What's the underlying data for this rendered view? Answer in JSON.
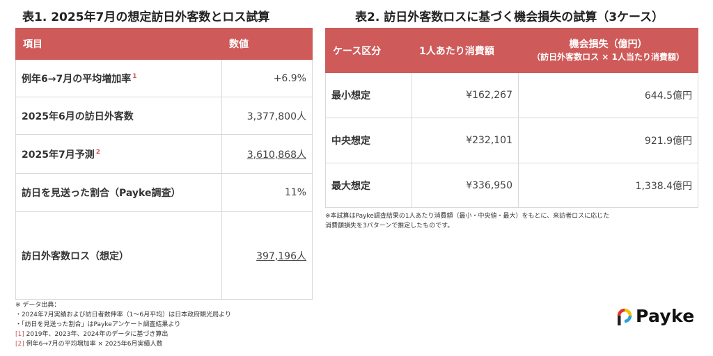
{
  "table1": {
    "title": "表1. 2025年7月の想定訪日外客数とロス試算",
    "headers": [
      "項目",
      "数値"
    ],
    "rows": [
      {
        "label": "例年6→7月の平均増加率",
        "ref": "1",
        "value": "+6.9%"
      },
      {
        "label": "2025年6月の訪日外客数",
        "ref": "",
        "value": "3,377,800人"
      },
      {
        "label": "2025年7月予測",
        "ref": "2",
        "value": "3,610,868人"
      },
      {
        "label": "訪日を見送った割合（Payke調査）",
        "ref": "",
        "value": "11%"
      },
      {
        "label": "訪日外客数ロス（想定）",
        "ref": "",
        "value": "397,196人"
      }
    ]
  },
  "table2": {
    "title": "表2. 訪日外客数ロスに基づく機会損失の試算（3ケース）",
    "headers": [
      "ケース区分",
      "1人あたり消費額",
      "機会損失（億円）",
      "（訪日外客数ロス × 1人当たり消費額）"
    ],
    "rows": [
      {
        "case": "最小想定",
        "per_person": "¥162,267",
        "loss": "644.5億円"
      },
      {
        "case": "中央想定",
        "per_person": "¥232,101",
        "loss": "921.9億円"
      },
      {
        "case": "最大想定",
        "per_person": "¥336,950",
        "loss": "1,338.4億円"
      }
    ],
    "note": "※本試算はPayke調査結果の1人あたり消費額（最小・中央値・最大）をもとに、来訪者ロスに応じた消費額損失を3パターンで推定したものです。"
  },
  "notes": {
    "source_title": "※ データ出典：",
    "line1": "・2024年7月実績および訪日者数伸率（1〜6月平均）は日本政府観光局より",
    "line2": "・「訪日を見送った割合」はPaykeアンケート調査結果より",
    "ref1_mark": "[1]",
    "ref1_text": " 2019年、2023年、2024年のデータに基づき算出",
    "ref2_mark": "[2]",
    "ref2_text": " 例年6→7月の平均増加率 × 2025年6月実績人数"
  },
  "logo": {
    "text": "Payke",
    "colors": [
      "#e6332a",
      "#f2c200",
      "#2aa0d8",
      "#222222"
    ]
  }
}
